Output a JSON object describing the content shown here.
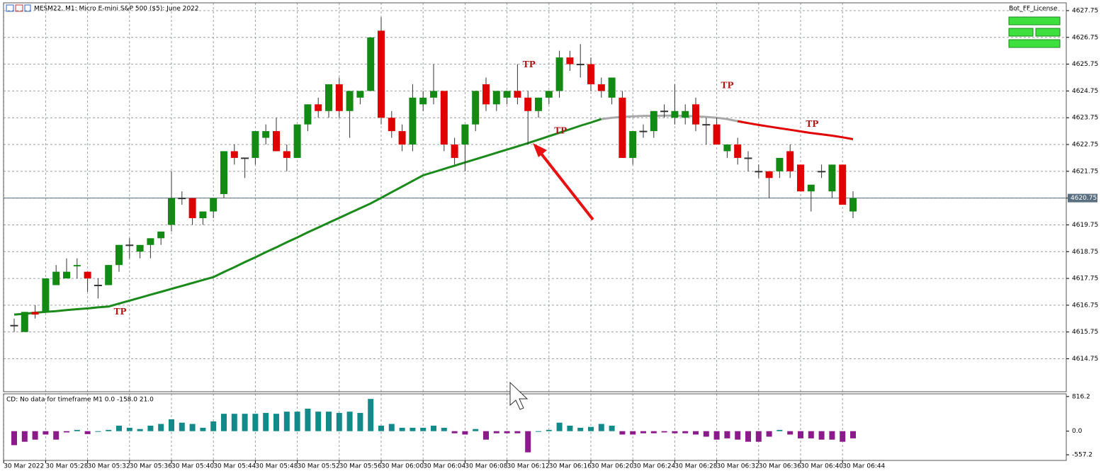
{
  "chart_data": {
    "type": "candlestick",
    "title": "MESM22, M1:  Micro E-mini S&P 500 ($5): June 2022",
    "license_label": "Bot_FF_License",
    "up_color": "#138a13",
    "down_color": "#e00000",
    "ylim": [
      4613.52,
      4628.04
    ],
    "yticks": [
      4627.75,
      4626.75,
      4625.75,
      4624.75,
      4623.75,
      4622.75,
      4621.75,
      4620.75,
      4619.75,
      4618.75,
      4617.75,
      4616.75,
      4615.75,
      4614.75
    ],
    "current_price": 4620.75,
    "grid": true,
    "xticks": [
      {
        "value": -1,
        "label": "30 Mar 2022"
      },
      {
        "value": 3,
        "label": "30 Mar 05:28"
      },
      {
        "value": 7,
        "label": "30 Mar 05:32"
      },
      {
        "value": 11,
        "label": "30 Mar 05:36"
      },
      {
        "value": 15,
        "label": "30 Mar 05:40"
      },
      {
        "value": 19,
        "label": "30 Mar 05:44"
      },
      {
        "value": 23,
        "label": "30 Mar 05:48"
      },
      {
        "value": 27,
        "label": "30 Mar 05:52"
      },
      {
        "value": 31,
        "label": "30 Mar 05:56"
      },
      {
        "value": 35,
        "label": "30 Mar 06:00"
      },
      {
        "value": 39,
        "label": "30 Mar 06:04"
      },
      {
        "value": 43,
        "label": "30 Mar 06:08"
      },
      {
        "value": 47,
        "label": "30 Mar 06:12"
      },
      {
        "value": 51,
        "label": "30 Mar 06:16"
      },
      {
        "value": 55,
        "label": "30 Mar 06:20"
      },
      {
        "value": 59,
        "label": "30 Mar 06:24"
      },
      {
        "value": 63,
        "label": "30 Mar 06:28"
      },
      {
        "value": 67,
        "label": "30 Mar 06:32"
      },
      {
        "value": 71,
        "label": "30 Mar 06:36"
      },
      {
        "value": 75,
        "label": "30 Mar 06:40"
      },
      {
        "value": 79,
        "label": "30 Mar 06:44"
      }
    ],
    "open": [
      4616.0,
      4615.75,
      4616.5,
      4616.5,
      4617.5,
      4617.75,
      4618.2,
      4618.0,
      4617.5,
      4617.5,
      4618.25,
      4619.0,
      4618.75,
      4619.0,
      4619.25,
      4619.75,
      4620.75,
      4620.75,
      4620.0,
      4620.25,
      4620.9,
      4622.5,
      4622.25,
      4622.25,
      4623.0,
      4623.25,
      4622.5,
      4622.25,
      4623.5,
      4624.25,
      4624.0,
      4625.0,
      4624.0,
      4624.5,
      4624.75,
      4627.0,
      4623.75,
      4623.25,
      4622.75,
      4624.25,
      4624.5,
      4624.75,
      4622.75,
      4622.75,
      4623.5,
      4625.0,
      4624.25,
      4624.5,
      4624.75,
      4624.5,
      4624.0,
      4624.5,
      4624.75,
      4626.0,
      4625.75,
      4625.75,
      4625.0,
      4624.5,
      4624.5,
      4622.25,
      4623.25,
      4623.25,
      4624.0,
      4623.75,
      4623.75,
      4624.25,
      4623.5,
      4623.5,
      4622.5,
      4622.75,
      4622.25,
      4621.75,
      4621.75,
      4621.75,
      4622.5,
      4622.0,
      4621.0,
      4621.75,
      4621.0,
      4622.0,
      4620.25
    ],
    "high": [
      4616.25,
      4616.5,
      4616.75,
      4617.75,
      4618.25,
      4618.5,
      4618.5,
      4618.0,
      4617.75,
      4618.25,
      4619.0,
      4619.25,
      4619.0,
      4619.25,
      4619.5,
      4621.75,
      4621.0,
      4620.75,
      4620.25,
      4620.75,
      4622.5,
      4622.75,
      4622.25,
      4623.25,
      4623.5,
      4623.75,
      4622.75,
      4623.5,
      4624.25,
      4624.5,
      4625.0,
      4625.25,
      4624.75,
      4624.75,
      4626.75,
      4627.5,
      4624.0,
      4623.5,
      4625.0,
      4624.75,
      4625.75,
      4624.75,
      4623.0,
      4623.5,
      4624.75,
      4625.25,
      4624.75,
      4624.75,
      4625.75,
      4624.75,
      4624.5,
      4624.75,
      4626.25,
      4626.25,
      4626.5,
      4626.0,
      4625.25,
      4625.25,
      4624.75,
      4623.25,
      4623.5,
      4624.0,
      4624.25,
      4625.0,
      4624.25,
      4624.5,
      4623.75,
      4623.75,
      4622.75,
      4623.0,
      4622.5,
      4622.0,
      4621.75,
      4622.25,
      4622.75,
      4622.0,
      4621.25,
      4622.0,
      4622.0,
      4622.0,
      4621.0
    ],
    "low": [
      4615.75,
      4615.75,
      4616.25,
      4616.5,
      4617.5,
      4617.75,
      4617.75,
      4617.25,
      4617.0,
      4617.5,
      4618.0,
      4618.5,
      4618.5,
      4618.5,
      4619.0,
      4619.5,
      4620.5,
      4619.75,
      4619.75,
      4620.0,
      4620.75,
      4622.0,
      4621.5,
      4622.0,
      4622.75,
      4622.5,
      4621.75,
      4622.25,
      4623.25,
      4623.75,
      4623.75,
      4623.75,
      4623.0,
      4624.25,
      4624.75,
      4623.5,
      4623.0,
      4622.5,
      4622.5,
      4624.0,
      4624.25,
      4622.5,
      4622.0,
      4621.75,
      4623.25,
      4624.0,
      4624.0,
      4624.25,
      4624.25,
      4622.75,
      4623.75,
      4624.25,
      4624.5,
      4625.5,
      4625.25,
      4624.75,
      4624.5,
      4624.25,
      4622.25,
      4622.0,
      4623.0,
      4623.0,
      4623.75,
      4623.5,
      4623.5,
      4623.25,
      4622.75,
      4622.75,
      4622.25,
      4622.0,
      4621.75,
      4621.5,
      4620.75,
      4621.5,
      4621.5,
      4621.0,
      4620.25,
      4621.5,
      4620.75,
      4620.5,
      4620.0
    ],
    "close": [
      4616.0,
      4616.5,
      4616.4,
      4617.75,
      4618.0,
      4618.0,
      4618.25,
      4617.75,
      4617.5,
      4618.25,
      4619.0,
      4619.0,
      4619.0,
      4619.25,
      4619.5,
      4620.75,
      4620.75,
      4620.0,
      4620.25,
      4620.75,
      4622.5,
      4622.25,
      4622.25,
      4623.25,
      4623.25,
      4622.5,
      4622.25,
      4623.5,
      4624.25,
      4624.0,
      4625.0,
      4624.0,
      4624.75,
      4624.75,
      4626.75,
      4623.75,
      4623.25,
      4622.75,
      4624.5,
      4624.5,
      4624.75,
      4622.75,
      4622.25,
      4623.5,
      4624.75,
      4624.25,
      4624.75,
      4624.75,
      4624.5,
      4624.0,
      4624.5,
      4624.75,
      4626.0,
      4625.75,
      4625.75,
      4625.0,
      4624.75,
      4625.25,
      4622.25,
      4623.25,
      4623.25,
      4624.0,
      4624.0,
      4624.0,
      4624.0,
      4623.5,
      4623.5,
      4622.75,
      4622.75,
      4622.25,
      4622.25,
      4621.75,
      4621.5,
      4622.25,
      4621.75,
      4621.0,
      4621.25,
      4621.75,
      4622.0,
      4620.5,
      4620.75
    ],
    "indicator_lines": [
      {
        "color": "#1a8a1a",
        "values": [
          4616.4,
          4616.43,
          4616.47,
          4616.5,
          4616.53,
          4616.57,
          4616.6,
          4616.63,
          4616.67,
          4616.7,
          4616.81,
          4616.92,
          4617.03,
          4617.14,
          4617.25,
          4617.36,
          4617.47,
          4617.58,
          4617.69,
          4617.8,
          4617.99,
          4618.17,
          4618.36,
          4618.54,
          4618.73,
          4618.91,
          4619.1,
          4619.28,
          4619.47,
          4619.65,
          4619.83,
          4620.01,
          4620.19,
          4620.37,
          4620.55,
          4620.76,
          4620.97,
          4621.18,
          4621.39,
          4621.6,
          4621.72,
          4621.84,
          4621.96,
          4622.08,
          4622.2,
          4622.32,
          4622.44,
          4622.56,
          4622.68,
          4622.8,
          4622.93,
          4623.06,
          4623.19,
          4623.32,
          4623.45,
          4623.57,
          4623.7,
          null,
          null,
          null,
          null,
          null,
          null,
          null,
          null,
          null,
          null,
          null,
          null,
          null,
          null,
          null,
          null,
          null,
          null,
          null,
          null,
          null,
          null,
          null,
          null
        ]
      },
      {
        "color": "#a8a8a8",
        "values": [
          null,
          null,
          null,
          null,
          null,
          null,
          null,
          null,
          null,
          null,
          null,
          null,
          null,
          null,
          null,
          null,
          null,
          null,
          null,
          null,
          null,
          null,
          null,
          null,
          null,
          null,
          null,
          null,
          null,
          null,
          null,
          null,
          null,
          null,
          null,
          null,
          null,
          null,
          null,
          null,
          null,
          null,
          null,
          null,
          null,
          null,
          null,
          null,
          null,
          null,
          null,
          null,
          null,
          null,
          null,
          null,
          4623.7,
          4623.75,
          4623.78,
          4623.8,
          4623.82,
          4623.82,
          4623.83,
          4623.83,
          4623.82,
          4623.8,
          4623.78,
          4623.75,
          4623.7,
          4623.62,
          4623.55,
          null,
          null,
          null,
          null,
          null,
          null,
          null,
          null,
          null,
          null
        ]
      },
      {
        "color": "#e00000",
        "values": [
          null,
          null,
          null,
          null,
          null,
          null,
          null,
          null,
          null,
          null,
          null,
          null,
          null,
          null,
          null,
          null,
          null,
          null,
          null,
          null,
          null,
          null,
          null,
          null,
          null,
          null,
          null,
          null,
          null,
          null,
          null,
          null,
          null,
          null,
          null,
          null,
          null,
          null,
          null,
          null,
          null,
          null,
          null,
          null,
          null,
          null,
          null,
          null,
          null,
          null,
          null,
          null,
          null,
          null,
          null,
          null,
          null,
          null,
          null,
          null,
          null,
          null,
          null,
          null,
          null,
          null,
          null,
          null,
          null,
          4623.62,
          4623.55,
          4623.48,
          4623.42,
          4623.36,
          4623.3,
          4623.24,
          4623.18,
          4623.13,
          4623.08,
          4623.02,
          4622.95
        ]
      }
    ],
    "annotations": [
      {
        "text": "TP",
        "x": 48.5,
        "y": 4625.73
      },
      {
        "text": "TP",
        "x": 51.5,
        "y": 4623.25
      },
      {
        "text": "TP",
        "x": 9.5,
        "y": 4616.5
      },
      {
        "text": "TP",
        "x": 67.4,
        "y": 4624.95
      },
      {
        "text": "TP",
        "x": 75.5,
        "y": 4623.5
      }
    ],
    "indicator": {
      "type": "bar",
      "label": "CD: No data for timeframe M1 0.0 -158.0 21.0",
      "positive_color": "#128a8a",
      "negative_color": "#8b1a8b",
      "y2lim": [
        -690,
        880
      ],
      "y2ticks": [
        816.2,
        {
          "value": 0,
          "label": "0.0"
        },
        -557.2
      ],
      "values": [
        -330,
        -250,
        -200,
        -80,
        -200,
        -30,
        30,
        -70,
        0,
        30,
        130,
        80,
        50,
        130,
        170,
        280,
        200,
        170,
        80,
        230,
        410,
        410,
        410,
        410,
        430,
        410,
        460,
        460,
        530,
        460,
        460,
        430,
        460,
        430,
        760,
        130,
        170,
        80,
        80,
        80,
        130,
        80,
        -50,
        -80,
        50,
        -200,
        -50,
        -50,
        -50,
        -500,
        0,
        30,
        200,
        130,
        80,
        100,
        170,
        130,
        -80,
        -80,
        -50,
        -50,
        -30,
        -50,
        -50,
        -80,
        -130,
        -200,
        -170,
        -200,
        -250,
        -250,
        -130,
        30,
        -80,
        -170,
        -170,
        -200,
        -200,
        -250,
        -170
      ]
    }
  }
}
